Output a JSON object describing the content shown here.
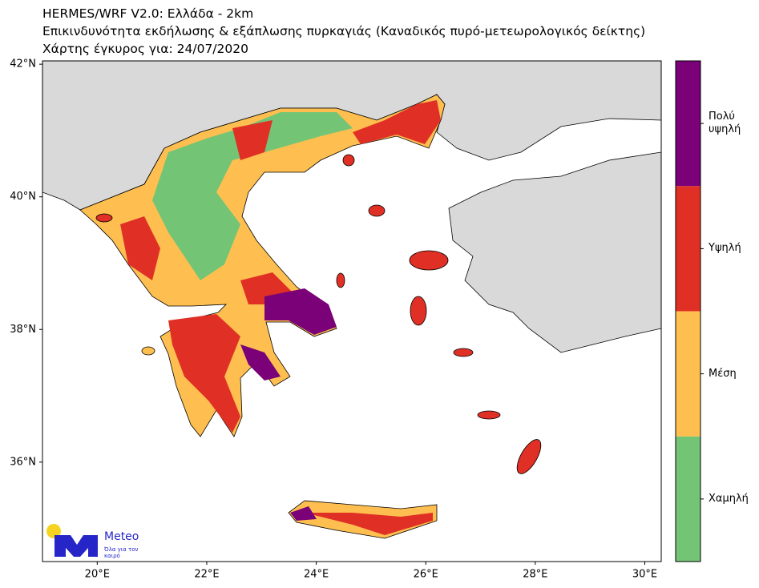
{
  "chart_data": {
    "type": "map",
    "title": "HERMES/WRF V2.0: Ελλάδα - 2km",
    "subtitle": "Επικινδυνότητα εκδήλωσης & εξάπλωσης πυρκαγιάς (Καναδικός πυρό-μετεωρολογικός δείκτης)",
    "validity": "Χάρτης έγκυρος για: 24/07/2020",
    "xlim": [
      19,
      30.3
    ],
    "ylim": [
      34.5,
      42.05
    ],
    "xticks": [
      {
        "value": 20,
        "label": "20°E"
      },
      {
        "value": 22,
        "label": "22°E"
      },
      {
        "value": 24,
        "label": "24°E"
      },
      {
        "value": 26,
        "label": "26°E"
      },
      {
        "value": 28,
        "label": "28°E"
      },
      {
        "value": 30,
        "label": "30°E"
      }
    ],
    "yticks": [
      {
        "value": 36,
        "label": "36°N"
      },
      {
        "value": 38,
        "label": "38°N"
      },
      {
        "value": 40,
        "label": "40°N"
      },
      {
        "value": 42,
        "label": "42°N"
      }
    ],
    "legend": [
      {
        "name": "Χαμηλή",
        "color": "#74c476"
      },
      {
        "name": "Μέση",
        "color": "#febf50"
      },
      {
        "name": "Υψηλή",
        "color": "#e03025"
      },
      {
        "name": "Πολύ υψηλή",
        "color": "#7a0177"
      }
    ],
    "logo": {
      "text": "Meteo",
      "tagline": "Όλα για τον καιρό"
    }
  }
}
